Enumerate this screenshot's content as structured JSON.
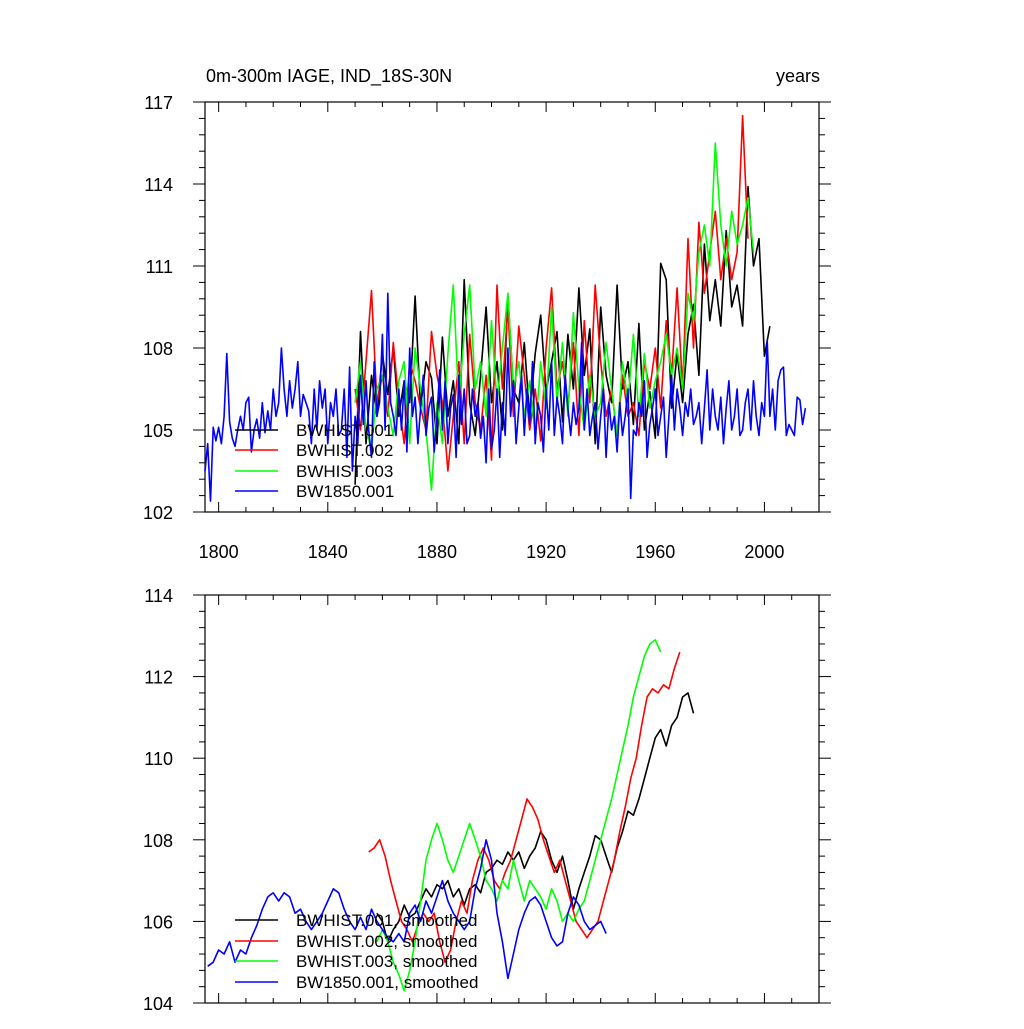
{
  "colors": {
    "black": "#000000",
    "red": "#ff0000",
    "green": "#00ff00",
    "blue": "#0000ff"
  },
  "chart_data": [
    {
      "type": "line",
      "title": "0m-300m IAGE, IND_18S-30N",
      "units_label": "years",
      "xlim": [
        1795,
        2020
      ],
      "ylim": [
        102,
        117
      ],
      "xticks": [
        1800,
        1840,
        1880,
        1920,
        1960,
        2000
      ],
      "yticks": [
        102,
        105,
        108,
        111,
        114,
        117
      ],
      "legend_position": "bottom-left",
      "series": [
        {
          "name": "BWHIST.001",
          "color": "black",
          "x_start": 1850,
          "x_step": 2,
          "values": [
            103.0,
            108.6,
            104.5,
            107.0,
            105.5,
            107.8,
            106.3,
            108.0,
            105.5,
            106.8,
            106.0,
            109.9,
            105.8,
            107.5,
            106.9,
            104.5,
            108.4,
            105.5,
            106.8,
            104.5,
            110.5,
            106.0,
            104.8,
            107.0,
            109.5,
            106.0,
            107.5,
            105.0,
            109.9,
            106.5,
            106.0,
            108.2,
            105.5,
            107.8,
            109.2,
            106.4,
            107.5,
            108.6,
            105.3,
            108.5,
            106.5,
            110.2,
            107.0,
            108.7,
            104.5,
            109.5,
            107.0,
            106.0,
            110.3,
            106.5,
            107.5,
            105.2,
            108.9,
            105.0,
            106.4,
            104.7,
            111.1,
            110.5,
            105.8,
            107.8,
            106.0,
            108.5,
            109.6,
            107.0,
            111.8,
            109.0,
            110.5,
            108.8,
            112.3,
            109.5,
            110.3,
            108.8,
            113.9,
            111.0,
            112.0,
            107.7,
            108.8
          ]
        },
        {
          "name": "BWHIST.002",
          "color": "red",
          "x_start": 1850,
          "x_step": 2,
          "values": [
            106.5,
            105.0,
            107.5,
            110.1,
            106.0,
            107.0,
            105.5,
            108.2,
            106.0,
            104.5,
            107.5,
            106.8,
            105.8,
            105.0,
            108.6,
            107.0,
            106.0,
            103.5,
            105.5,
            107.5,
            104.5,
            108.5,
            106.0,
            105.0,
            107.0,
            103.9,
            110.3,
            106.5,
            109.5,
            105.5,
            108.8,
            107.0,
            105.0,
            106.5,
            104.6,
            108.0,
            110.2,
            106.5,
            107.5,
            105.8,
            108.2,
            104.8,
            109.0,
            106.0,
            110.3,
            107.5,
            105.5,
            106.5,
            104.8,
            107.0,
            105.5,
            106.0,
            104.8,
            107.5,
            106.5,
            108.0,
            105.8,
            109.0,
            107.0,
            110.2,
            106.5,
            112.0,
            108.0,
            112.6,
            110.0,
            111.5,
            113.0,
            110.5,
            112.0,
            110.5,
            111.5,
            116.5,
            112.0
          ]
        },
        {
          "name": "BWHIST.003",
          "color": "green",
          "x_start": 1850,
          "x_step": 2,
          "values": [
            106.0,
            107.5,
            105.0,
            104.3,
            106.5,
            107.0,
            105.8,
            104.8,
            106.8,
            107.5,
            104.5,
            108.0,
            106.5,
            105.0,
            102.8,
            106.0,
            104.5,
            107.8,
            110.3,
            106.0,
            108.5,
            110.3,
            106.5,
            107.5,
            105.5,
            109.0,
            106.0,
            108.0,
            110.0,
            106.5,
            107.5,
            105.5,
            106.8,
            104.8,
            107.5,
            105.8,
            109.5,
            106.0,
            108.2,
            105.5,
            109.3,
            106.5,
            105.0,
            107.0,
            105.5,
            106.0,
            108.2,
            106.5,
            104.8,
            107.5,
            106.0,
            108.5,
            105.5,
            107.8,
            105.8,
            106.8,
            107.5,
            108.5,
            107.0,
            108.0,
            106.5,
            110.0,
            109.0,
            111.5,
            112.5,
            111.0,
            115.5,
            112.5,
            111.0,
            113.0,
            111.8,
            112.5,
            113.5,
            111.5
          ]
        },
        {
          "name": "BW1850.001",
          "color": "blue",
          "x_start": 1795,
          "x_step": 1,
          "values": [
            103.5,
            104.5,
            102.4,
            105.1,
            104.6,
            105.1,
            104.5,
            105.5,
            107.8,
            105.3,
            104.7,
            104.4,
            105.0,
            105.5,
            105.0,
            106.0,
            106.2,
            104.2,
            105.0,
            105.4,
            104.7,
            106.0,
            104.9,
            105.7,
            105.0,
            106.5,
            105.5,
            106.0,
            108.0,
            106.5,
            105.5,
            106.8,
            105.8,
            106.5,
            107.5,
            105.5,
            106.3,
            106.0,
            105.7,
            104.5,
            106.5,
            105.0,
            106.8,
            105.8,
            106.5,
            104.5,
            106.0,
            105.5,
            106.5,
            104.8,
            105.0,
            106.5,
            104.0,
            107.3,
            103.5,
            105.5,
            104.5,
            107.0,
            105.2,
            106.8,
            105.0,
            104.0,
            107.5,
            105.5,
            106.0,
            108.5,
            105.0,
            110.0,
            106.0,
            105.5,
            104.8,
            106.5,
            105.0,
            106.8,
            104.2,
            108.0,
            105.5,
            106.2,
            104.5,
            105.8,
            107.0,
            104.8,
            105.8,
            106.2,
            104.2,
            105.5,
            107.2,
            105.0,
            106.8,
            104.5,
            105.8,
            106.3,
            104.0,
            107.0,
            105.2,
            106.5,
            104.5,
            104.8,
            106.5,
            105.5,
            106.0,
            104.7,
            105.5,
            103.8,
            106.5,
            104.3,
            105.0,
            106.5,
            104.0,
            106.0,
            104.8,
            108.0,
            105.5,
            106.8,
            104.5,
            105.8,
            107.0,
            104.8,
            106.5,
            105.2,
            107.5,
            104.5,
            106.0,
            105.5,
            104.2,
            106.5,
            105.0,
            107.5,
            104.8,
            106.2,
            105.5,
            104.5,
            107.0,
            105.8,
            104.8,
            106.0,
            105.2,
            105.8,
            108.2,
            105.0,
            106.5,
            104.8,
            105.5,
            106.0,
            104.3,
            105.5,
            106.5,
            104.0,
            106.0,
            105.0,
            105.5,
            104.2,
            106.0,
            104.8,
            105.5,
            106.5,
            102.5,
            105.0,
            104.8,
            106.0,
            105.5,
            106.8,
            104.0,
            105.2,
            105.8,
            106.5,
            104.8,
            105.5,
            106.2,
            104.0,
            105.5,
            107.0,
            105.0,
            106.5,
            105.8,
            104.8,
            106.0,
            105.5,
            106.5,
            105.2,
            105.5,
            106.0,
            104.5,
            105.8,
            107.2,
            105.0,
            106.5,
            105.5,
            105.0,
            106.2,
            104.5,
            105.8,
            106.8,
            105.0,
            105.5,
            106.5,
            104.8,
            105.0,
            106.0,
            106.5,
            105.0,
            106.8,
            105.5,
            104.8,
            106.0,
            105.5,
            108.3,
            105.5,
            106.5,
            105.0,
            106.8,
            107.2,
            107.3,
            104.8,
            105.2,
            105.0,
            104.8,
            106.2,
            106.1,
            105.2,
            105.8
          ]
        }
      ]
    },
    {
      "type": "line",
      "xlim": [
        1795,
        2020
      ],
      "ylim": [
        104,
        114
      ],
      "xticks": [
        1800,
        1840,
        1880,
        1920,
        1960,
        2000
      ],
      "yticks": [
        104,
        106,
        108,
        110,
        112,
        114
      ],
      "legend_position": "bottom-left",
      "series": [
        {
          "name": "BWHIST.001, smoothed",
          "color": "black",
          "x_start": 1858,
          "x_step": 2,
          "values": [
            106.2,
            106.0,
            105.5,
            105.8,
            106.0,
            106.4,
            106.1,
            106.2,
            106.5,
            106.8,
            106.6,
            106.9,
            106.8,
            107.0,
            106.6,
            106.8,
            106.4,
            106.8,
            106.9,
            106.7,
            107.2,
            107.3,
            107.5,
            107.4,
            107.7,
            107.5,
            107.7,
            107.3,
            107.6,
            107.8,
            108.2,
            108.0,
            107.5,
            107.2,
            107.6,
            107.0,
            106.3,
            106.8,
            107.2,
            107.6,
            108.1,
            108.0,
            107.6,
            107.2,
            107.8,
            108.2,
            108.7,
            108.6,
            109.0,
            109.5,
            110.0,
            110.5,
            110.7,
            110.3,
            110.8,
            111.0,
            111.5,
            111.6,
            111.1
          ]
        },
        {
          "name": "BWHIST.002, smoothed",
          "color": "red",
          "x_start": 1855,
          "x_step": 2,
          "values": [
            107.7,
            107.8,
            108.0,
            107.6,
            107.0,
            106.5,
            106.0,
            105.8,
            105.5,
            105.9,
            106.2,
            106.0,
            106.2,
            105.5,
            105.0,
            105.3,
            106.0,
            106.5,
            106.2,
            107.0,
            107.5,
            107.8,
            107.5,
            107.0,
            106.8,
            107.2,
            107.5,
            108.0,
            108.5,
            109.0,
            108.8,
            108.5,
            108.0,
            107.6,
            107.2,
            107.5,
            107.0,
            106.5,
            106.0,
            105.8,
            105.6,
            105.8,
            106.0,
            106.5,
            107.0,
            107.5,
            108.2,
            108.8,
            109.5,
            110.0,
            110.8,
            111.5,
            111.7,
            111.6,
            111.8,
            111.7,
            112.2,
            112.6
          ]
        },
        {
          "name": "BWHIST.003, smoothed",
          "color": "green",
          "x_start": 1858,
          "x_step": 2,
          "values": [
            105.5,
            105.8,
            105.5,
            105.0,
            104.7,
            104.3,
            104.8,
            105.5,
            106.5,
            107.5,
            108.0,
            108.4,
            108.0,
            107.5,
            107.2,
            107.6,
            108.0,
            108.4,
            108.0,
            107.6,
            107.0,
            106.8,
            106.5,
            107.0,
            106.8,
            107.5,
            107.0,
            106.5,
            107.0,
            106.8,
            106.6,
            106.3,
            106.8,
            106.5,
            106.0,
            106.2,
            106.0,
            106.3,
            106.5,
            107.0,
            107.5,
            108.0,
            108.5,
            109.0,
            109.6,
            110.2,
            110.8,
            111.5,
            112.0,
            112.5,
            112.8,
            112.9,
            112.6
          ]
        },
        {
          "name": "BW1850.001, smoothed",
          "color": "blue",
          "x_start": 1796,
          "x_step": 2,
          "values": [
            104.9,
            105.0,
            105.3,
            105.2,
            105.5,
            105.0,
            105.3,
            105.2,
            105.6,
            105.9,
            106.3,
            106.6,
            106.7,
            106.5,
            106.7,
            106.6,
            106.2,
            106.3,
            106.0,
            105.8,
            106.0,
            106.2,
            106.5,
            106.8,
            106.7,
            106.3,
            106.0,
            105.8,
            106.1,
            105.8,
            106.3,
            106.0,
            105.8,
            105.6,
            105.5,
            105.7,
            105.5,
            106.2,
            106.4,
            106.0,
            106.5,
            106.2,
            106.6,
            107.0,
            106.5,
            106.2,
            106.0,
            105.8,
            106.0,
            106.8,
            107.3,
            108.0,
            107.5,
            106.2,
            105.5,
            104.6,
            105.2,
            105.8,
            106.2,
            106.5,
            106.6,
            106.4,
            106.0,
            105.6,
            105.4,
            105.5,
            106.2,
            106.6,
            106.4,
            106.0,
            105.8,
            105.9,
            106.0,
            105.7
          ]
        }
      ]
    }
  ]
}
